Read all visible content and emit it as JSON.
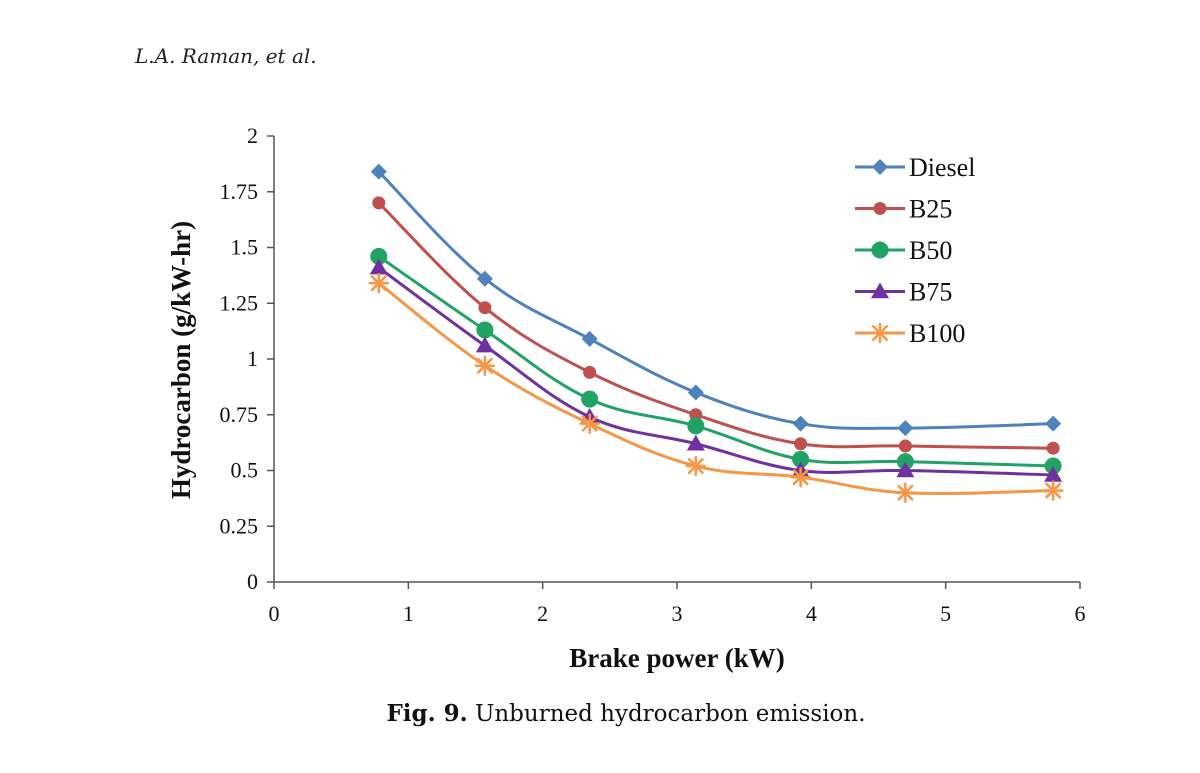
{
  "header": {
    "running_head": "L.A. Raman, et al."
  },
  "caption": {
    "label": "Fig. 9.",
    "text": "Unburned hydrocarbon emission."
  },
  "chart_data": {
    "type": "line",
    "xlabel": "Brake power (kW)",
    "ylabel": "Hydrocarbon (g/kW-hr)",
    "xlim": [
      0,
      6
    ],
    "ylim": [
      0,
      2
    ],
    "xticks": [
      "0",
      "1",
      "2",
      "3",
      "4",
      "5",
      "6"
    ],
    "yticks": [
      "0",
      "0.25",
      "0.5",
      "0.75",
      "1",
      "1.25",
      "1.5",
      "1.75",
      "2"
    ],
    "x": [
      0.78,
      1.57,
      2.35,
      3.14,
      3.92,
      4.7,
      5.8
    ],
    "grid": false,
    "legend_position": "top-right",
    "series": [
      {
        "name": "Diesel",
        "color": "#4F81BD",
        "marker": "diamond",
        "values": [
          1.84,
          1.36,
          1.09,
          0.85,
          0.71,
          0.69,
          0.71
        ]
      },
      {
        "name": "B25",
        "color": "#C0504D",
        "marker": "circle",
        "values": [
          1.7,
          1.23,
          0.94,
          0.75,
          0.62,
          0.61,
          0.6
        ]
      },
      {
        "name": "B50",
        "color": "#21A366",
        "marker": "circle-large",
        "values": [
          1.46,
          1.13,
          0.82,
          0.7,
          0.55,
          0.54,
          0.52
        ]
      },
      {
        "name": "B75",
        "color": "#7030A0",
        "marker": "triangle",
        "values": [
          1.41,
          1.06,
          0.74,
          0.62,
          0.5,
          0.5,
          0.48
        ]
      },
      {
        "name": "B100",
        "color": "#F79646",
        "marker": "asterisk",
        "values": [
          1.34,
          0.97,
          0.71,
          0.52,
          0.47,
          0.4,
          0.41
        ]
      }
    ]
  }
}
